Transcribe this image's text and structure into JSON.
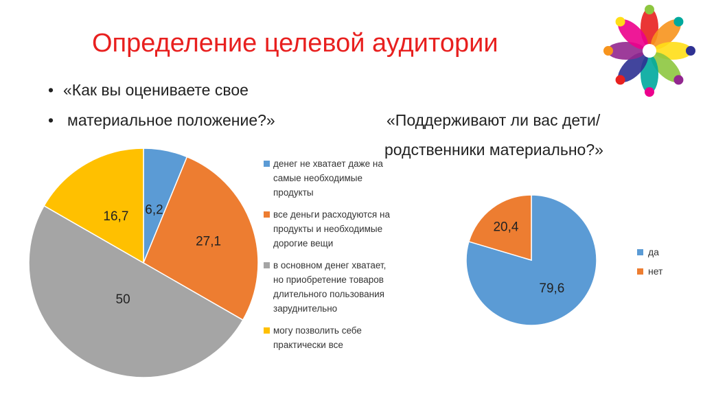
{
  "slide": {
    "title": "Определение целевой аудитории",
    "bullet_dot": "•",
    "bullets": [
      "«Как вы оцениваете свое",
      "материальное  положение?»"
    ],
    "question2": [
      "«Поддерживают ли вас дети/",
      "родственники материально?»"
    ]
  },
  "chart_data": [
    {
      "type": "pie",
      "title": "",
      "categories": [
        "денег не хватает даже на самые необходимые продукты",
        "все деньги расходуются на продукты и необходимые дорогие вещи",
        "в основном денег хватает, но приобретение товаров длительного пользования зарудн­ительно",
        "могу позволить себе практически все"
      ],
      "legend_lines": [
        [
          "денег не хватает даже на",
          "самые необходимые",
          "продукты"
        ],
        [
          "все деньги расходуются на",
          "продукты и необходимые",
          "дорогие вещи"
        ],
        [
          "в основном денег хватает,",
          "но приобретение товаров",
          "длительного пользования",
          "зарудн­ительно"
        ],
        [
          "могу позволить себе",
          "практически все"
        ]
      ],
      "values": [
        6.2,
        27.1,
        50,
        16.7
      ],
      "data_labels": [
        "6,2",
        "27,1",
        "50",
        "16,7"
      ],
      "colors": [
        "#5b9bd5",
        "#ed7d31",
        "#a5a5a5",
        "#ffc000"
      ],
      "legend_position": "right"
    },
    {
      "type": "pie",
      "title": "",
      "categories": [
        "да",
        "нет"
      ],
      "values": [
        79.6,
        20.4
      ],
      "data_labels": [
        "79,6",
        "20,4"
      ],
      "colors": [
        "#5b9bd5",
        "#ed7d31"
      ],
      "legend_position": "right"
    }
  ],
  "logo": {
    "icon": "colorful-people-circle-logo",
    "colors": [
      "#e8201f",
      "#f7941d",
      "#ffde17",
      "#8dc63f",
      "#00a99d",
      "#2e3192",
      "#92278f",
      "#ec008c"
    ]
  }
}
